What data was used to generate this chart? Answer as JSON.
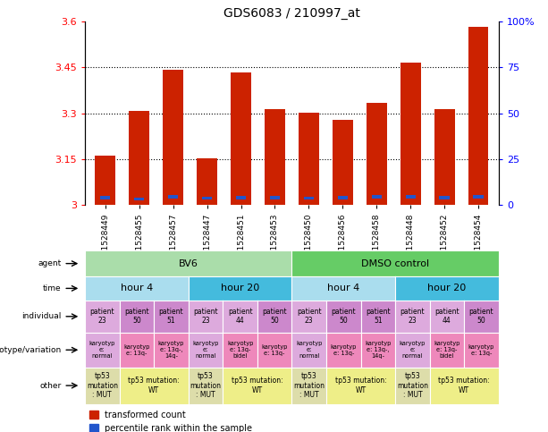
{
  "title": "GDS6083 / 210997_at",
  "samples": [
    "GSM1528449",
    "GSM1528455",
    "GSM1528457",
    "GSM1528447",
    "GSM1528451",
    "GSM1528453",
    "GSM1528450",
    "GSM1528456",
    "GSM1528458",
    "GSM1528448",
    "GSM1528452",
    "GSM1528454"
  ],
  "bar_values": [
    3.163,
    3.307,
    3.443,
    3.153,
    3.435,
    3.315,
    3.303,
    3.278,
    3.335,
    3.465,
    3.313,
    3.583
  ],
  "blue_values": [
    3.025,
    3.02,
    3.028,
    3.023,
    3.025,
    3.025,
    3.023,
    3.025,
    3.028,
    3.028,
    3.025,
    3.028
  ],
  "ymin": 3.0,
  "ymax": 3.6,
  "yticks": [
    3.0,
    3.15,
    3.3,
    3.45,
    3.6
  ],
  "ytick_labels": [
    "3",
    "3.15",
    "3.3",
    "3.45",
    "3.6"
  ],
  "right_ytick_labels": [
    "0",
    "25",
    "50",
    "75",
    "100%"
  ],
  "bar_color": "#cc2200",
  "blue_color": "#2255cc",
  "agent_row": {
    "label": "agent",
    "groups": [
      {
        "text": "BV6",
        "start": 0,
        "end": 5,
        "color": "#aaddaa"
      },
      {
        "text": "DMSO control",
        "start": 6,
        "end": 11,
        "color": "#66cc66"
      }
    ]
  },
  "time_row": {
    "label": "time",
    "groups": [
      {
        "text": "hour 4",
        "start": 0,
        "end": 2,
        "color": "#aaddee"
      },
      {
        "text": "hour 20",
        "start": 3,
        "end": 5,
        "color": "#44bbdd"
      },
      {
        "text": "hour 4",
        "start": 6,
        "end": 8,
        "color": "#aaddee"
      },
      {
        "text": "hour 20",
        "start": 9,
        "end": 11,
        "color": "#44bbdd"
      }
    ]
  },
  "individual_row": {
    "label": "individual",
    "cells": [
      {
        "text": "patient\n23",
        "color": "#ddaadd"
      },
      {
        "text": "patient\n50",
        "color": "#cc88cc"
      },
      {
        "text": "patient\n51",
        "color": "#cc88cc"
      },
      {
        "text": "patient\n23",
        "color": "#ddaadd"
      },
      {
        "text": "patient\n44",
        "color": "#ddaadd"
      },
      {
        "text": "patient\n50",
        "color": "#cc88cc"
      },
      {
        "text": "patient\n23",
        "color": "#ddaadd"
      },
      {
        "text": "patient\n50",
        "color": "#cc88cc"
      },
      {
        "text": "patient\n51",
        "color": "#cc88cc"
      },
      {
        "text": "patient\n23",
        "color": "#ddaadd"
      },
      {
        "text": "patient\n44",
        "color": "#ddaadd"
      },
      {
        "text": "patient\n50",
        "color": "#cc88cc"
      }
    ]
  },
  "genotype_row": {
    "label": "genotype/variation",
    "cells": [
      {
        "text": "karyotyp\ne:\nnormal",
        "color": "#ddaadd"
      },
      {
        "text": "karyotyp\ne: 13q-",
        "color": "#ee88bb"
      },
      {
        "text": "karyotyp\ne: 13q-,\n14q-",
        "color": "#ee88bb"
      },
      {
        "text": "karyotyp\ne:\nnormal",
        "color": "#ddaadd"
      },
      {
        "text": "karyotyp\ne: 13q-\nbidel",
        "color": "#ee88bb"
      },
      {
        "text": "karyotyp\ne: 13q-",
        "color": "#ee88bb"
      },
      {
        "text": "karyotyp\ne:\nnormal",
        "color": "#ddaadd"
      },
      {
        "text": "karyotyp\ne: 13q-",
        "color": "#ee88bb"
      },
      {
        "text": "karyotyp\ne: 13q-,\n14q-",
        "color": "#ee88bb"
      },
      {
        "text": "karyotyp\ne:\nnormal",
        "color": "#ddaadd"
      },
      {
        "text": "karyotyp\ne: 13q-\nbidel",
        "color": "#ee88bb"
      },
      {
        "text": "karyotyp\ne: 13q-",
        "color": "#ee88bb"
      }
    ]
  },
  "other_row": {
    "label": "other",
    "groups": [
      {
        "text": "tp53\nmutation\n: MUT",
        "start": 0,
        "end": 0,
        "color": "#ddddaa"
      },
      {
        "text": "tp53 mutation:\nWT",
        "start": 1,
        "end": 2,
        "color": "#eeee88"
      },
      {
        "text": "tp53\nmutation\n: MUT",
        "start": 3,
        "end": 3,
        "color": "#ddddaa"
      },
      {
        "text": "tp53 mutation:\nWT",
        "start": 4,
        "end": 5,
        "color": "#eeee88"
      },
      {
        "text": "tp53\nmutation\n: MUT",
        "start": 6,
        "end": 6,
        "color": "#ddddaa"
      },
      {
        "text": "tp53 mutation:\nWT",
        "start": 7,
        "end": 8,
        "color": "#eeee88"
      },
      {
        "text": "tp53\nmutation\n: MUT",
        "start": 9,
        "end": 9,
        "color": "#ddddaa"
      },
      {
        "text": "tp53 mutation:\nWT",
        "start": 10,
        "end": 11,
        "color": "#eeee88"
      }
    ]
  }
}
